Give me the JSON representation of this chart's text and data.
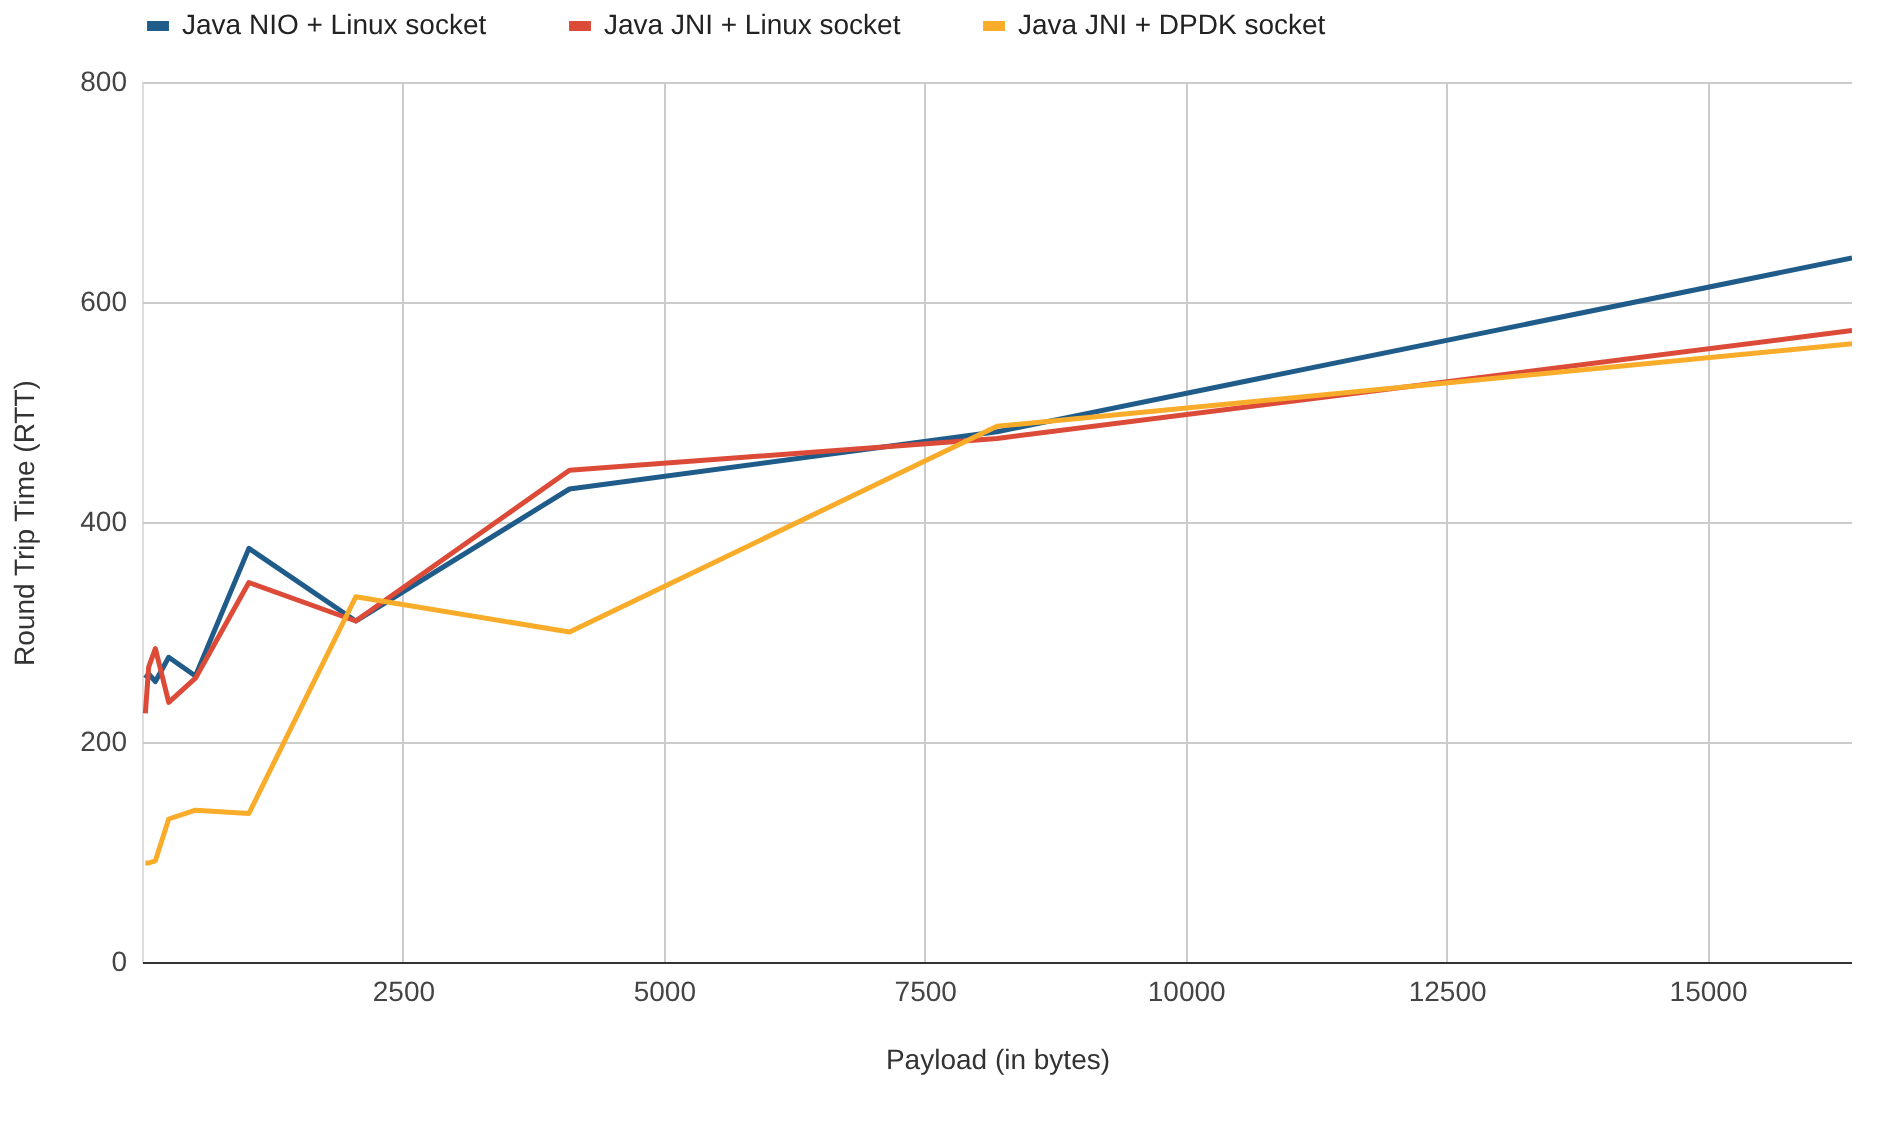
{
  "chart_data": {
    "type": "line",
    "xlabel": "Payload (in bytes)",
    "ylabel": "Round Trip Time (RTT)",
    "x": [
      32,
      64,
      128,
      256,
      512,
      1024,
      2048,
      4096,
      8192,
      16384
    ],
    "series": [
      {
        "name": "Java NIO + Linux socket",
        "color": "#1f5c8a",
        "values": [
          258,
          262,
          255,
          277,
          260,
          376,
          310,
          430,
          482,
          640
        ]
      },
      {
        "name": "Java JNI + Linux socket",
        "color": "#dc4a38",
        "values": [
          226,
          268,
          285,
          236,
          258,
          345,
          310,
          447,
          476,
          574
        ]
      },
      {
        "name": "Java JNI + DPDK socket",
        "color": "#f9ac2a",
        "values": [
          90,
          90,
          92,
          130,
          138,
          135,
          332,
          300,
          487,
          562
        ]
      }
    ],
    "xlim": [
      0,
      16384
    ],
    "xticks": [
      2500,
      5000,
      7500,
      10000,
      12500,
      15000
    ],
    "ylim": [
      0,
      800
    ],
    "yticks": [
      0,
      200,
      400,
      600,
      800
    ],
    "grid": true,
    "legend": "top",
    "marker": "none",
    "line_style": "solid"
  }
}
